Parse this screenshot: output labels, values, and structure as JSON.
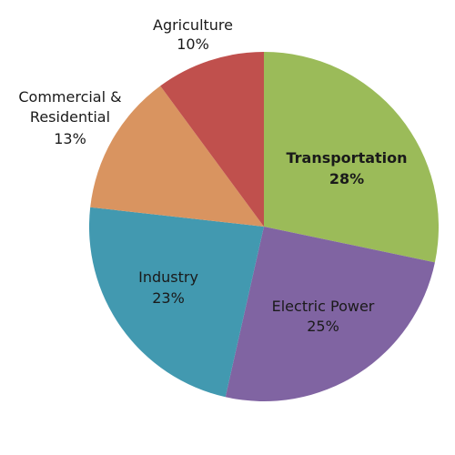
{
  "chart_data": {
    "type": "pie",
    "title": "",
    "start_angle_deg": 0,
    "direction": "clockwise",
    "slices": [
      {
        "label": "Transportation",
        "value": 28,
        "value_label": "28%",
        "color": "#9bbb59",
        "bold": true
      },
      {
        "label": "Electric Power",
        "value": 25,
        "value_label": "25%",
        "color": "#8064a2",
        "bold": false
      },
      {
        "label": "Industry",
        "value": 23,
        "value_label": "23%",
        "color": "#4299b0",
        "bold": false
      },
      {
        "label": "Commercial & Residential",
        "value": 13,
        "value_label": "13%",
        "color": "#d99460",
        "bold": false
      },
      {
        "label": "Agriculture",
        "value": 10,
        "value_label": "10%",
        "color": "#c0504d",
        "bold": false
      }
    ]
  }
}
